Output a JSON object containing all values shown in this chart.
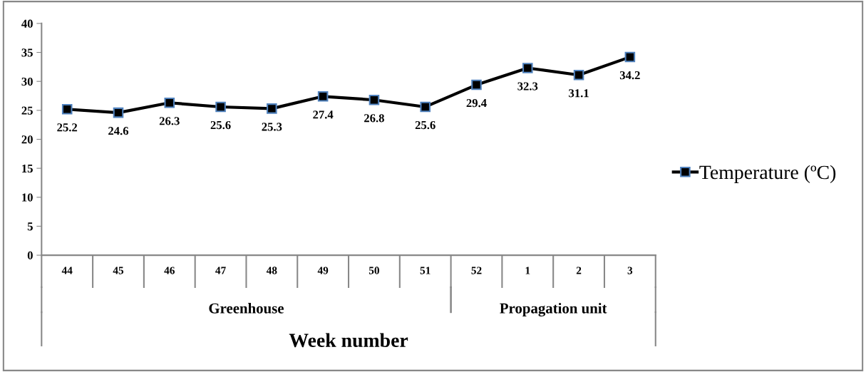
{
  "chart_data": {
    "type": "line",
    "xlabel": "Week number",
    "categories": [
      "44",
      "45",
      "46",
      "47",
      "48",
      "49",
      "50",
      "51",
      "52",
      "1",
      "2",
      "3"
    ],
    "series": [
      {
        "name": "Temperature (ºC)",
        "color": "#000000",
        "values": [
          25.2,
          24.6,
          26.3,
          25.6,
          25.3,
          27.4,
          26.8,
          25.6,
          29.4,
          32.3,
          31.1,
          34.2
        ]
      }
    ],
    "annotations": [
      "Greenhouse",
      "Propagation unit"
    ],
    "ylim": [
      0,
      40
    ],
    "yticks": [
      0,
      5,
      10,
      15,
      20,
      25,
      30,
      35,
      40
    ],
    "data_labels": true,
    "marker": "square",
    "line_style": "solid",
    "grid": false,
    "legend": "right"
  }
}
